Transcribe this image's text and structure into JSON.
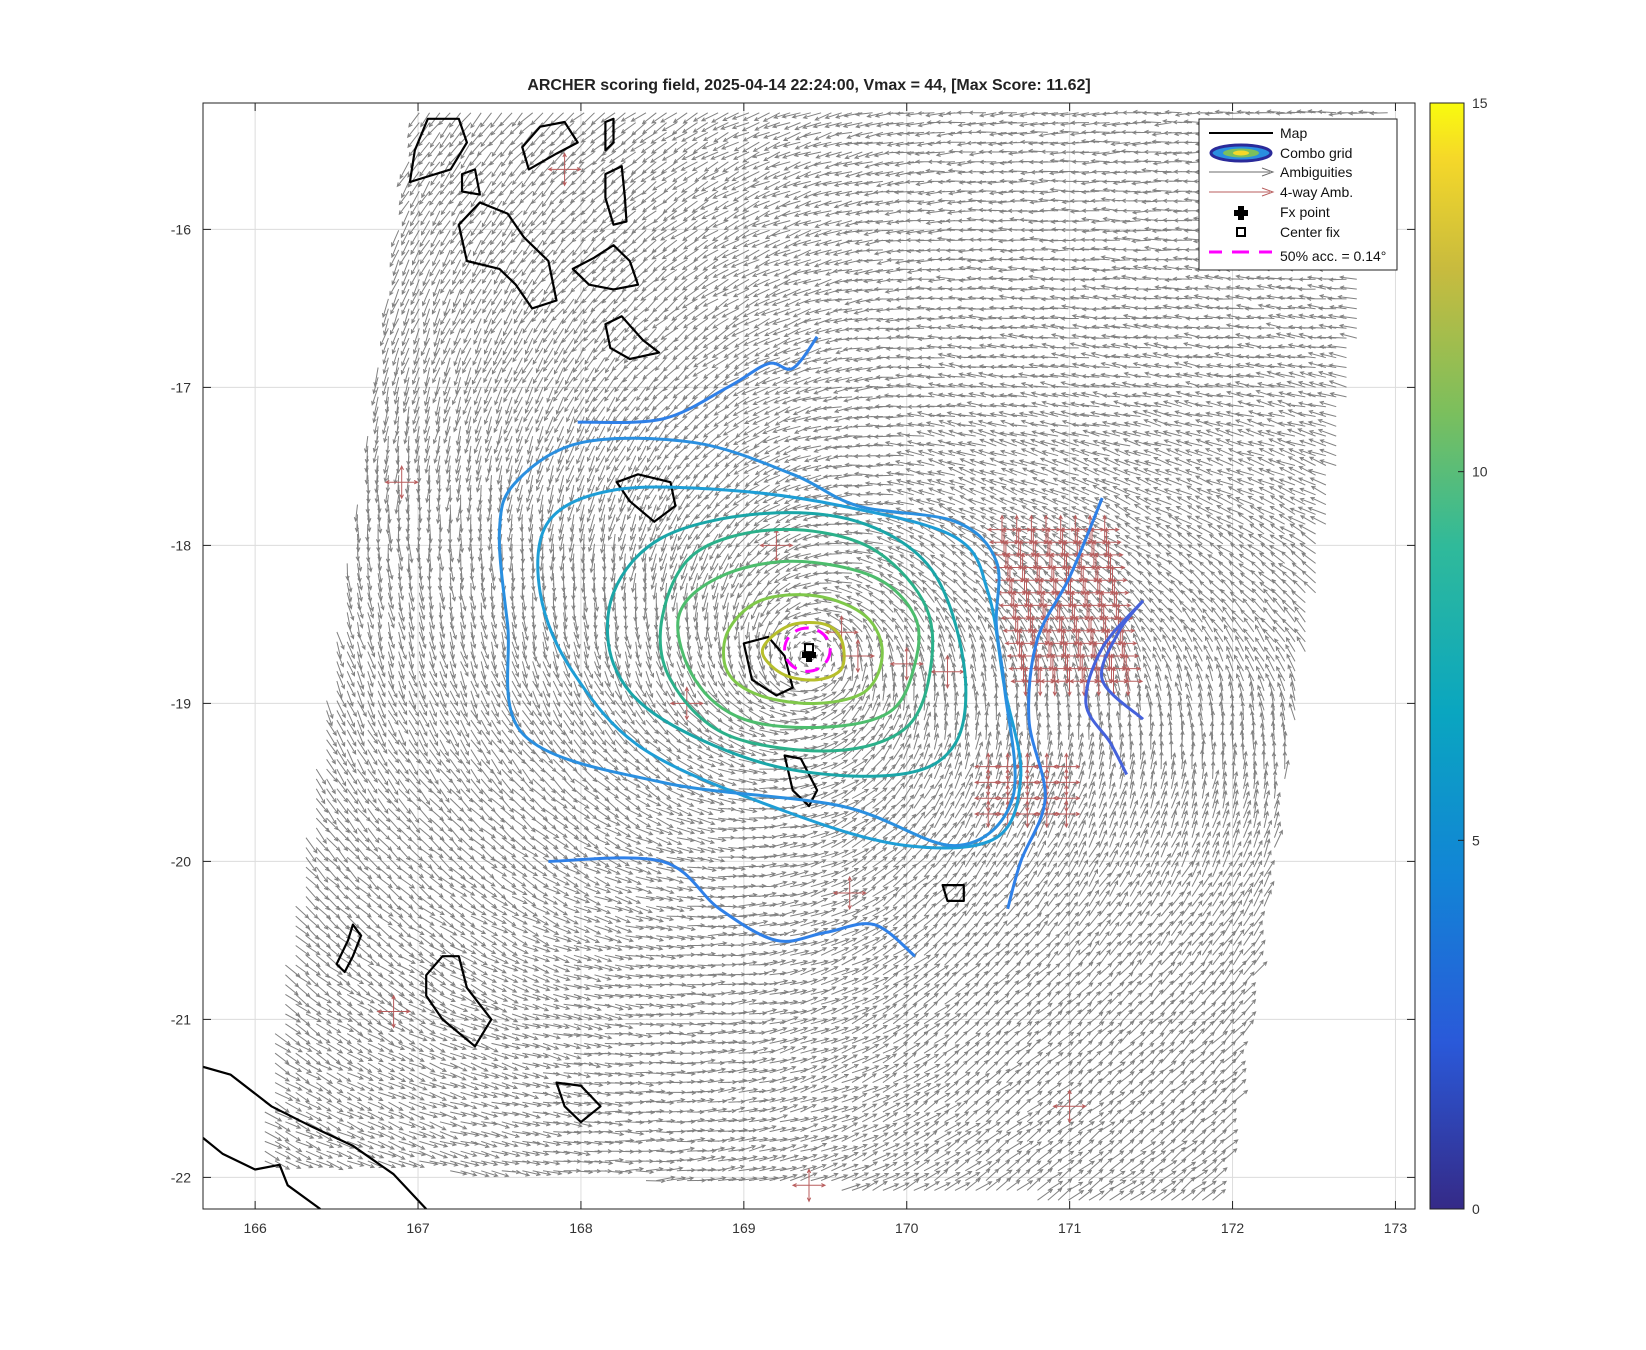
{
  "chart_data": {
    "type": "contour",
    "title": "ARCHER scoring field, 2025-04-14 22:24:00, Vmax = 44, [Max Score: 11.62]",
    "xlabel": "",
    "ylabel": "",
    "xlim": [
      165.68,
      173.12
    ],
    "ylim": [
      -22.2,
      -15.2
    ],
    "x_ticks": [
      "166",
      "167",
      "168",
      "169",
      "170",
      "171",
      "172",
      "173"
    ],
    "y_ticks": [
      "-16",
      "-17",
      "-18",
      "-19",
      "-20",
      "-21",
      "-22"
    ],
    "grid": true,
    "colorbar": {
      "min": 0,
      "max": 15,
      "ticks": [
        "0",
        "5",
        "10",
        "15"
      ],
      "colormap": "parula"
    },
    "legend": {
      "position": "top-right",
      "entries": [
        "Map",
        "Combo grid",
        "Ambiguities",
        "4-way Amb.",
        "Fx point",
        "Center fix",
        "50% acc. = 0.14°"
      ]
    },
    "fx_point": {
      "x": 169.4,
      "y": -18.7
    },
    "center_fix": {
      "x": 169.4,
      "y": -18.65
    },
    "accuracy_circle": {
      "x": 169.39,
      "y": -18.66,
      "radius_deg": 0.14
    },
    "center": {
      "x": 169.4,
      "y": -18.7
    },
    "max_score": 11.62,
    "contours": [
      {
        "level": 11,
        "color": "#b7bf2c",
        "points": [
          [
            169.15,
            -18.6
          ],
          [
            169.3,
            -18.5
          ],
          [
            169.5,
            -18.5
          ],
          [
            169.6,
            -18.6
          ],
          [
            169.6,
            -18.78
          ],
          [
            169.45,
            -18.85
          ],
          [
            169.25,
            -18.82
          ],
          [
            169.12,
            -18.7
          ]
        ]
      },
      {
        "level": 10,
        "color": "#7fc84a",
        "points": [
          [
            168.9,
            -18.55
          ],
          [
            169.1,
            -18.35
          ],
          [
            169.45,
            -18.32
          ],
          [
            169.75,
            -18.45
          ],
          [
            169.85,
            -18.68
          ],
          [
            169.75,
            -18.92
          ],
          [
            169.45,
            -19.0
          ],
          [
            169.1,
            -18.95
          ],
          [
            168.9,
            -18.8
          ]
        ]
      },
      {
        "level": 9,
        "color": "#4dbd6d",
        "points": [
          [
            168.6,
            -18.45
          ],
          [
            168.85,
            -18.2
          ],
          [
            169.3,
            -18.1
          ],
          [
            169.8,
            -18.2
          ],
          [
            170.05,
            -18.45
          ],
          [
            170.05,
            -18.75
          ],
          [
            169.9,
            -19.05
          ],
          [
            169.5,
            -19.15
          ],
          [
            169.0,
            -19.1
          ],
          [
            168.7,
            -18.85
          ]
        ]
      },
      {
        "level": 8,
        "color": "#2bb08a",
        "points": [
          [
            168.5,
            -18.45
          ],
          [
            168.7,
            -18.05
          ],
          [
            169.2,
            -17.9
          ],
          [
            169.75,
            -18.0
          ],
          [
            170.1,
            -18.35
          ],
          [
            170.15,
            -18.75
          ],
          [
            170.0,
            -19.15
          ],
          [
            169.55,
            -19.3
          ],
          [
            168.9,
            -19.2
          ],
          [
            168.55,
            -18.85
          ]
        ]
      },
      {
        "level": 7,
        "color": "#1aa6a8",
        "points": [
          [
            168.2,
            -18.3
          ],
          [
            168.5,
            -17.95
          ],
          [
            169.1,
            -17.8
          ],
          [
            169.7,
            -17.85
          ],
          [
            170.15,
            -18.15
          ],
          [
            170.35,
            -18.75
          ],
          [
            170.3,
            -19.25
          ],
          [
            169.95,
            -19.45
          ],
          [
            169.2,
            -19.4
          ],
          [
            168.5,
            -19.1
          ],
          [
            168.2,
            -18.75
          ]
        ]
      },
      {
        "level": 6,
        "color": "#1e9ed6",
        "points": [
          [
            167.8,
            -17.85
          ],
          [
            168.2,
            -17.65
          ],
          [
            168.9,
            -17.65
          ],
          [
            169.6,
            -17.75
          ],
          [
            170.3,
            -17.95
          ],
          [
            170.5,
            -18.3
          ],
          [
            170.6,
            -18.9
          ],
          [
            170.7,
            -19.45
          ],
          [
            170.55,
            -19.85
          ],
          [
            170.0,
            -19.9
          ],
          [
            169.3,
            -19.7
          ],
          [
            168.4,
            -19.3
          ],
          [
            167.95,
            -18.8
          ],
          [
            167.75,
            -18.3
          ]
        ]
      },
      {
        "level": 5.5,
        "color": "#2a8fe0",
        "points": [
          [
            167.6,
            -17.6
          ],
          [
            168.0,
            -17.35
          ],
          [
            168.7,
            -17.35
          ],
          [
            169.3,
            -17.55
          ],
          [
            169.7,
            -17.75
          ],
          [
            170.3,
            -17.85
          ],
          [
            170.55,
            -18.1
          ],
          [
            170.55,
            -18.5
          ],
          [
            170.6,
            -18.9
          ],
          [
            170.65,
            -19.6
          ],
          [
            170.3,
            -19.9
          ],
          [
            169.6,
            -19.65
          ],
          [
            168.5,
            -19.5
          ],
          [
            167.65,
            -19.2
          ],
          [
            167.55,
            -18.5
          ],
          [
            167.5,
            -17.9
          ]
        ]
      },
      {
        "level": 5,
        "color": "#2f80e8",
        "points": [
          [
            167.98,
            -17.22
          ],
          [
            168.5,
            -17.2
          ],
          [
            168.9,
            -17.0
          ],
          [
            169.15,
            -16.85
          ],
          [
            169.3,
            -16.88
          ],
          [
            169.45,
            -16.68
          ]
        ]
      },
      {
        "level": 5,
        "color": "#2f80e8",
        "points": [
          [
            167.8,
            -20.0
          ],
          [
            168.5,
            -20.0
          ],
          [
            168.85,
            -20.3
          ],
          [
            169.2,
            -20.5
          ],
          [
            169.5,
            -20.45
          ],
          [
            169.8,
            -20.4
          ],
          [
            170.05,
            -20.6
          ]
        ]
      },
      {
        "level": 5,
        "color": "#2f80e8",
        "points": [
          [
            171.2,
            -17.7
          ],
          [
            171.0,
            -18.2
          ],
          [
            170.8,
            -18.6
          ],
          [
            170.75,
            -19.1
          ],
          [
            170.85,
            -19.6
          ],
          [
            170.7,
            -20.0
          ],
          [
            170.62,
            -20.3
          ]
        ]
      },
      {
        "level": 4,
        "color": "#4562dc",
        "points": [
          [
            171.45,
            -18.35
          ],
          [
            171.2,
            -18.65
          ],
          [
            171.1,
            -19.0
          ],
          [
            171.25,
            -19.25
          ],
          [
            171.35,
            -19.45
          ]
        ]
      },
      {
        "level": 4,
        "color": "#4562dc",
        "points": [
          [
            171.45,
            -18.35
          ],
          [
            171.3,
            -18.55
          ],
          [
            171.2,
            -18.85
          ],
          [
            171.45,
            -19.1
          ]
        ]
      }
    ],
    "map_outlines": [
      [
        [
          167.06,
          -15.3
        ],
        [
          166.98,
          -15.5
        ],
        [
          166.95,
          -15.7
        ],
        [
          167.2,
          -15.62
        ],
        [
          167.3,
          -15.45
        ],
        [
          167.25,
          -15.3
        ]
      ],
      [
        [
          167.68,
          -15.62
        ],
        [
          167.85,
          -15.52
        ],
        [
          167.98,
          -15.45
        ],
        [
          167.9,
          -15.32
        ],
        [
          167.75,
          -15.35
        ],
        [
          167.64,
          -15.48
        ]
      ],
      [
        [
          168.15,
          -15.5
        ],
        [
          168.2,
          -15.45
        ],
        [
          168.2,
          -15.3
        ],
        [
          168.15,
          -15.32
        ]
      ],
      [
        [
          168.15,
          -15.65
        ],
        [
          168.25,
          -15.6
        ],
        [
          168.27,
          -15.8
        ],
        [
          168.28,
          -15.95
        ],
        [
          168.2,
          -15.97
        ],
        [
          168.15,
          -15.8
        ]
      ],
      [
        [
          167.25,
          -15.97
        ],
        [
          167.38,
          -15.83
        ],
        [
          167.55,
          -15.9
        ],
        [
          167.65,
          -16.05
        ],
        [
          167.8,
          -16.2
        ],
        [
          167.85,
          -16.45
        ],
        [
          167.7,
          -16.5
        ],
        [
          167.6,
          -16.35
        ],
        [
          167.5,
          -16.25
        ],
        [
          167.3,
          -16.2
        ]
      ],
      [
        [
          167.27,
          -15.65
        ],
        [
          167.35,
          -15.62
        ],
        [
          167.38,
          -15.78
        ],
        [
          167.27,
          -15.76
        ]
      ],
      [
        [
          167.95,
          -16.25
        ],
        [
          168.08,
          -16.18
        ],
        [
          168.2,
          -16.1
        ],
        [
          168.3,
          -16.2
        ],
        [
          168.35,
          -16.35
        ],
        [
          168.2,
          -16.38
        ],
        [
          168.05,
          -16.35
        ]
      ],
      [
        [
          168.15,
          -16.6
        ],
        [
          168.25,
          -16.55
        ],
        [
          168.38,
          -16.7
        ],
        [
          168.48,
          -16.78
        ],
        [
          168.3,
          -16.82
        ],
        [
          168.18,
          -16.75
        ]
      ],
      [
        [
          168.22,
          -17.6
        ],
        [
          168.35,
          -17.55
        ],
        [
          168.55,
          -17.6
        ],
        [
          168.58,
          -17.75
        ],
        [
          168.45,
          -17.85
        ],
        [
          168.3,
          -17.72
        ]
      ],
      [
        [
          169.0,
          -18.62
        ],
        [
          169.15,
          -18.58
        ],
        [
          169.25,
          -18.7
        ],
        [
          169.3,
          -18.9
        ],
        [
          169.2,
          -18.95
        ],
        [
          169.05,
          -18.85
        ]
      ],
      [
        [
          169.25,
          -19.33
        ],
        [
          169.35,
          -19.35
        ],
        [
          169.45,
          -19.55
        ],
        [
          169.4,
          -19.65
        ],
        [
          169.3,
          -19.55
        ]
      ],
      [
        [
          170.22,
          -20.15
        ],
        [
          170.35,
          -20.15
        ],
        [
          170.35,
          -20.25
        ],
        [
          170.25,
          -20.25
        ]
      ],
      [
        [
          167.05,
          -20.72
        ],
        [
          167.15,
          -20.6
        ],
        [
          167.25,
          -20.6
        ],
        [
          167.3,
          -20.8
        ],
        [
          167.45,
          -21.0
        ],
        [
          167.35,
          -21.17
        ],
        [
          167.15,
          -21.0
        ],
        [
          167.05,
          -20.85
        ]
      ],
      [
        [
          166.6,
          -20.4
        ],
        [
          166.65,
          -20.47
        ],
        [
          166.6,
          -20.6
        ],
        [
          166.55,
          -20.7
        ],
        [
          166.5,
          -20.65
        ],
        [
          166.57,
          -20.5
        ]
      ],
      [
        [
          167.85,
          -21.4
        ],
        [
          168.0,
          -21.42
        ],
        [
          168.12,
          -21.55
        ],
        [
          168.0,
          -21.65
        ],
        [
          167.9,
          -21.55
        ]
      ],
      [
        [
          165.68,
          -21.3
        ],
        [
          165.85,
          -21.35
        ],
        [
          166.1,
          -21.55
        ],
        [
          166.35,
          -21.68
        ],
        [
          166.6,
          -21.8
        ],
        [
          166.85,
          -21.98
        ],
        [
          167.05,
          -22.2
        ]
      ],
      [
        [
          165.68,
          -21.75
        ],
        [
          165.8,
          -21.85
        ],
        [
          166.0,
          -21.95
        ],
        [
          166.15,
          -21.92
        ],
        [
          166.2,
          -22.05
        ],
        [
          166.4,
          -22.2
        ]
      ]
    ],
    "wind_swath": {
      "description_points": [
        [
          166.0,
          -21.9
        ],
        [
          167.0,
          -15.2
        ],
        [
          173.0,
          -15.2
        ],
        [
          171.9,
          -22.2
        ]
      ]
    }
  },
  "colors": {
    "ambiguity": "#6b6b6b",
    "four_way": "#b85d5d",
    "map": "#000000",
    "accuracy": "#ff00ff"
  }
}
